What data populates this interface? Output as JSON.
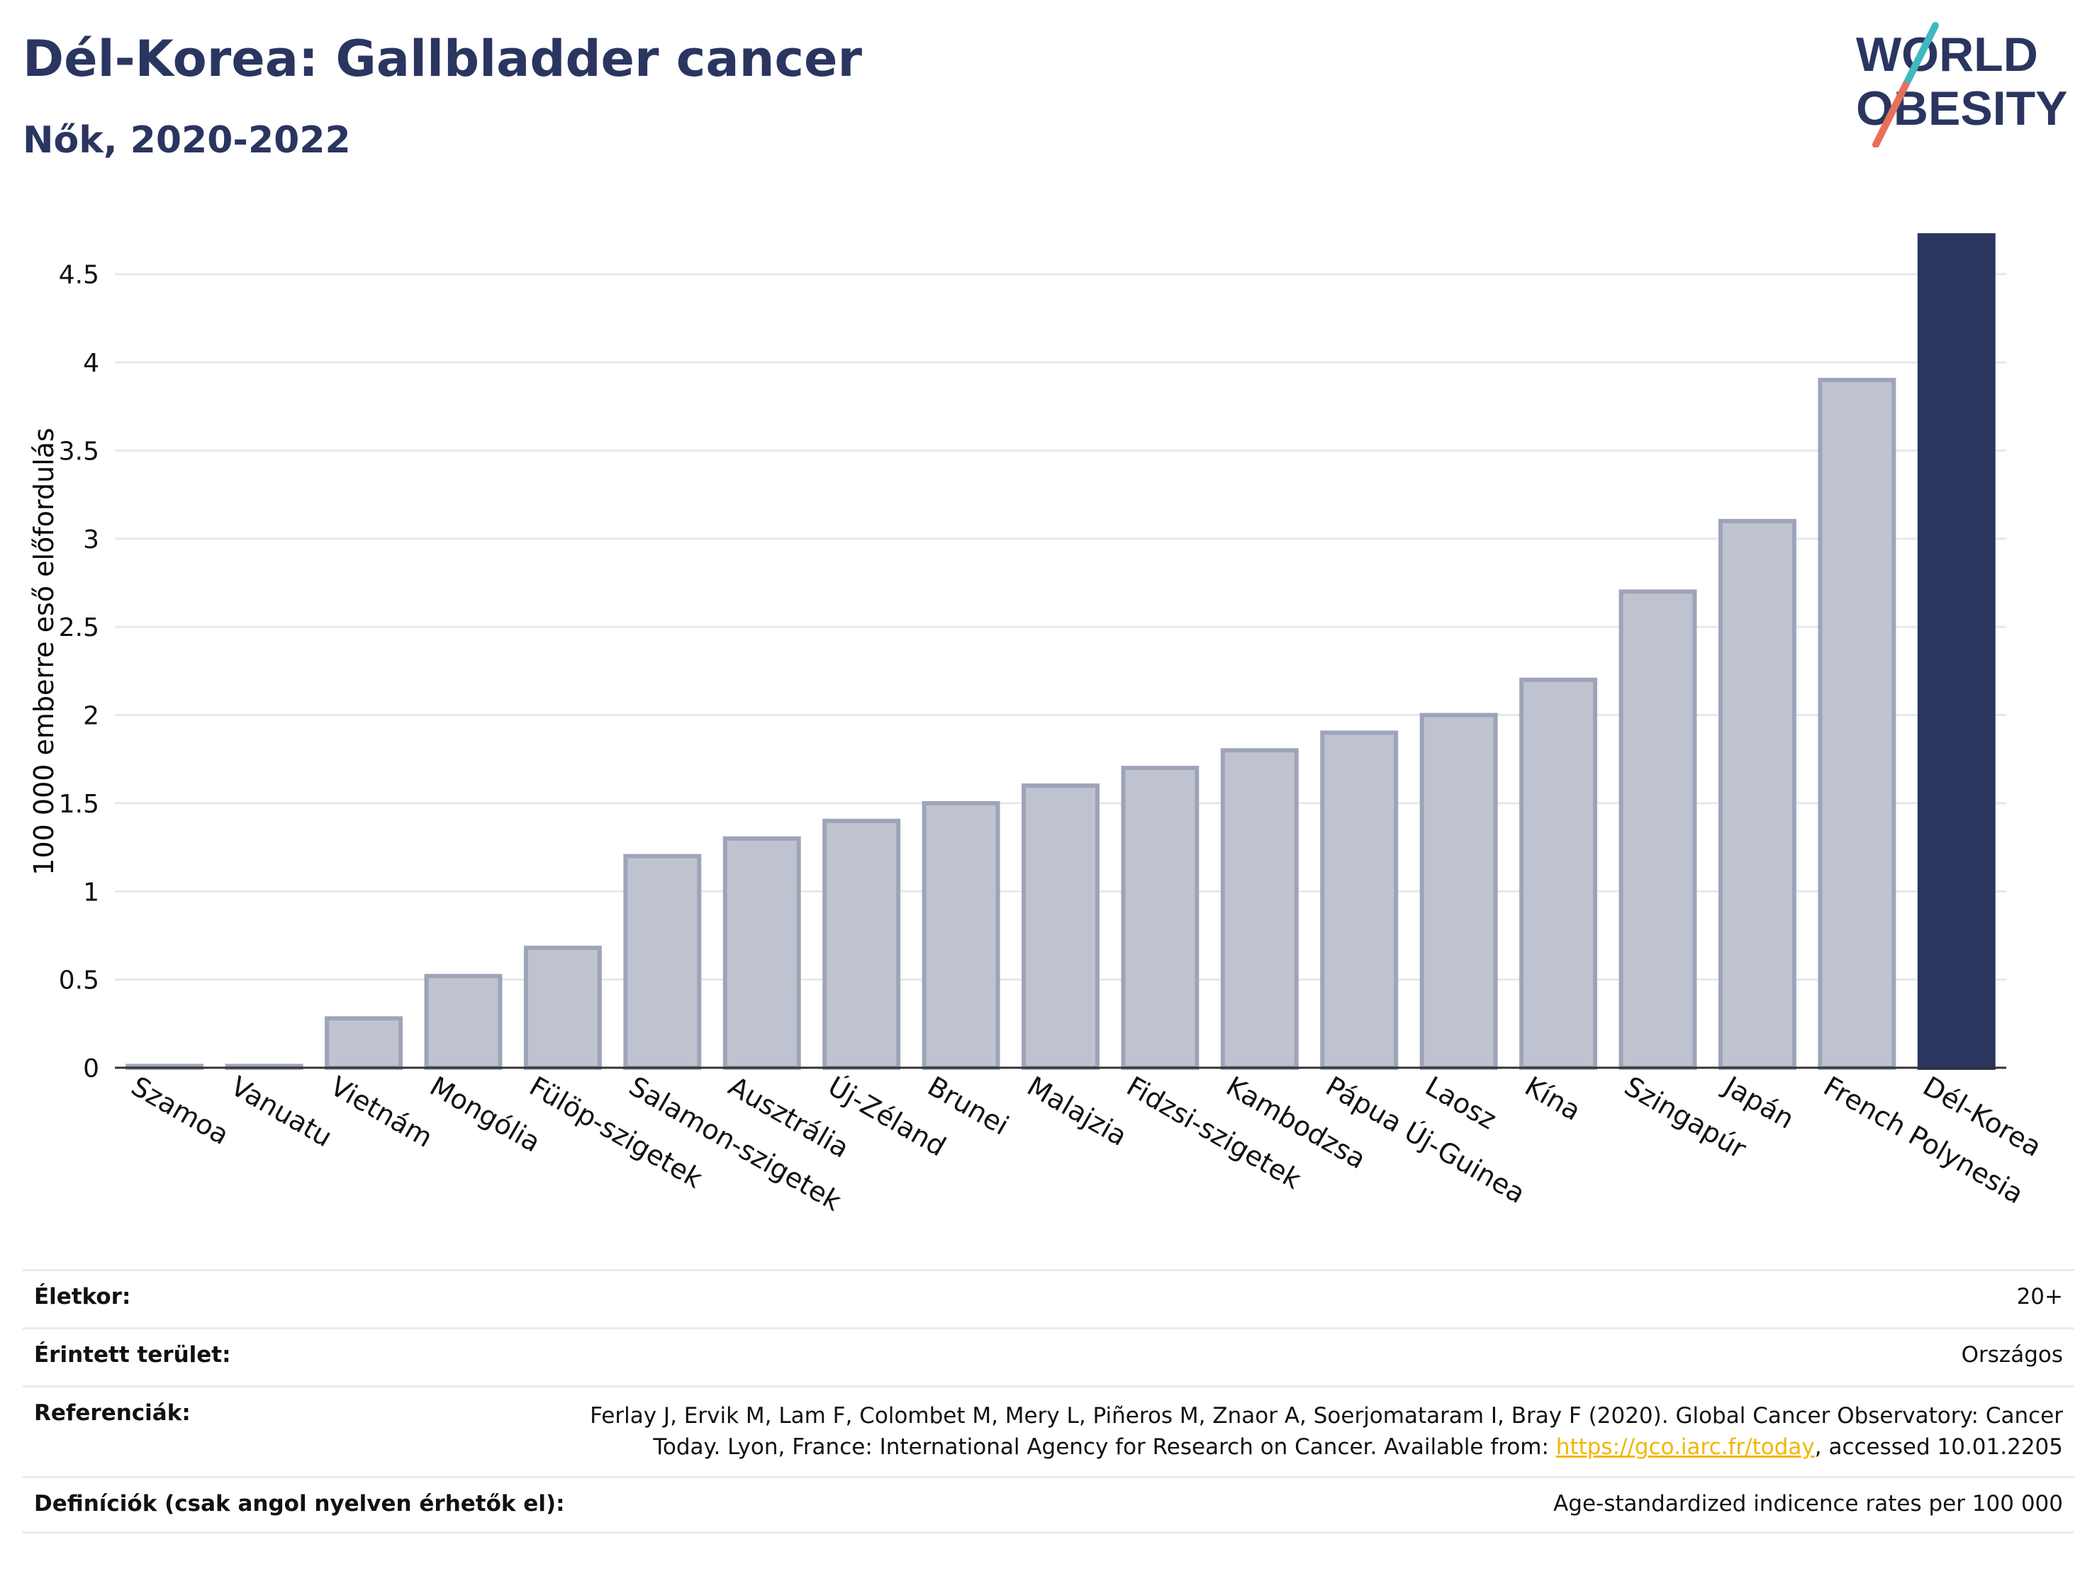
{
  "title": "Dél-Korea: Gallbladder cancer",
  "subtitle": "Nők, 2020-2022",
  "logo": {
    "line1": "WORLD",
    "line2": "OBESITY",
    "slash_colors": [
      "#3fb8c0",
      "#e8705a"
    ]
  },
  "colors": {
    "highlight": "#2a3560",
    "bar_fill": "#bfc3d0",
    "bar_stroke": "#9ea4b8",
    "grid": "#e5e8ee",
    "axis": "#333333"
  },
  "chart_data": {
    "type": "bar",
    "ylabel": "100 000 emberre eső előfordulás",
    "ylim": [
      0,
      4.72
    ],
    "yticks": [
      0,
      0.5,
      1,
      1.5,
      2,
      2.5,
      3,
      3.5,
      4,
      4.5
    ],
    "ytick_labels": [
      "0",
      "0.5",
      "1",
      "1.5",
      "2",
      "2.5",
      "3",
      "3.5",
      "4",
      "4.5"
    ],
    "categories": [
      "Szamoa",
      "Vanuatu",
      "Vietnám",
      "Mongólia",
      "Fülöp-szigetek",
      "Salamon-szigetek",
      "Ausztrália",
      "Új-Zéland",
      "Brunei",
      "Malajzia",
      "Fidzsi-szigetek",
      "Kambodzsa",
      "Pápua Új-Guinea",
      "Laosz",
      "Kína",
      "Szingapúr",
      "Japán",
      "French Polynesia",
      "Dél-Korea"
    ],
    "values": [
      0.01,
      0.01,
      0.28,
      0.52,
      0.68,
      1.2,
      1.3,
      1.4,
      1.5,
      1.6,
      1.7,
      1.8,
      1.9,
      2.0,
      2.2,
      2.7,
      3.1,
      3.9,
      4.72
    ],
    "highlight": "Dél-Korea",
    "grid": true
  },
  "meta": {
    "age_label": "Életkor:",
    "age_value": "20+",
    "area_label": "Érintett terület:",
    "area_value": "Országos",
    "ref_label": "Referenciák:",
    "ref_line1": "Ferlay J, Ervik M, Lam F, Colombet M, Mery L, Piñeros M, Znaor A, Soerjomataram I, Bray F (2020). Global Cancer Observatory: Cancer",
    "ref_line2_pre": "Today. Lyon, France: International Agency for Research on Cancer. Available from: ",
    "ref_link": "https://gco.iarc.fr/today",
    "ref_line2_post": ", accessed 10.01.2205",
    "def_label": "Definíciók (csak angol nyelven érhetők el):",
    "def_value": "Age-standardized indicence rates per 100 000"
  }
}
